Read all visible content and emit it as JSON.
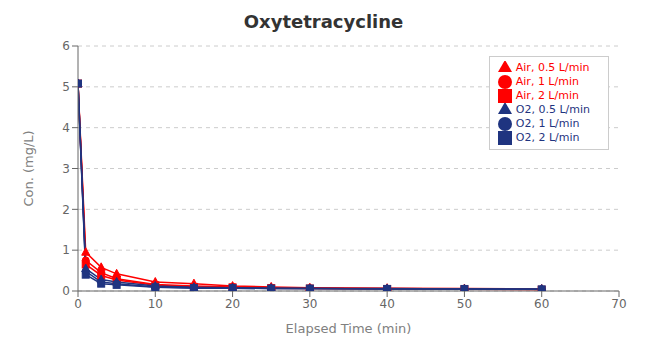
{
  "chart_data": {
    "type": "line",
    "title": "Oxytetracycline",
    "xlabel": "Elapsed Time (min)",
    "ylabel": "Con. (mg/L)",
    "xlim": [
      0,
      70
    ],
    "ylim": [
      0,
      6
    ],
    "xticks": [
      0,
      10,
      20,
      30,
      40,
      50,
      60,
      70
    ],
    "yticks": [
      0,
      1,
      2,
      3,
      4,
      5,
      6
    ],
    "grid": "y",
    "legend": "upper right",
    "x": [
      0,
      1,
      3,
      5,
      10,
      15,
      20,
      25,
      30,
      40,
      50,
      60
    ],
    "series": [
      {
        "name": "Air,  0.5 L/min",
        "color": "#FF0000",
        "marker": "triangle",
        "values": [
          5.08,
          0.95,
          0.58,
          0.42,
          0.22,
          0.18,
          0.12,
          0.1,
          0.08,
          0.07,
          0.06,
          0.05
        ]
      },
      {
        "name": "Air,  1 L/min",
        "color": "#FF0000",
        "marker": "circle",
        "values": [
          5.08,
          0.75,
          0.45,
          0.3,
          0.16,
          0.12,
          0.1,
          0.08,
          0.07,
          0.06,
          0.05,
          0.04
        ]
      },
      {
        "name": "Air,  2 L/min",
        "color": "#FF0000",
        "marker": "square",
        "values": [
          5.08,
          0.65,
          0.38,
          0.27,
          0.14,
          0.1,
          0.09,
          0.07,
          0.06,
          0.05,
          0.04,
          0.03
        ]
      },
      {
        "name": "O2,  0.5 L/min",
        "color": "#1F3480",
        "marker": "triangle",
        "values": [
          5.08,
          0.55,
          0.28,
          0.22,
          0.12,
          0.09,
          0.08,
          0.07,
          0.06,
          0.06,
          0.05,
          0.05
        ]
      },
      {
        "name": "O2,  1 L/min",
        "color": "#1F3480",
        "marker": "circle",
        "values": [
          5.08,
          0.48,
          0.22,
          0.18,
          0.1,
          0.08,
          0.07,
          0.06,
          0.06,
          0.05,
          0.05,
          0.04
        ]
      },
      {
        "name": "O2,  2 L/min",
        "color": "#1F3480",
        "marker": "square",
        "values": [
          5.08,
          0.4,
          0.18,
          0.15,
          0.09,
          0.07,
          0.07,
          0.06,
          0.06,
          0.05,
          0.05,
          0.04
        ]
      }
    ]
  }
}
